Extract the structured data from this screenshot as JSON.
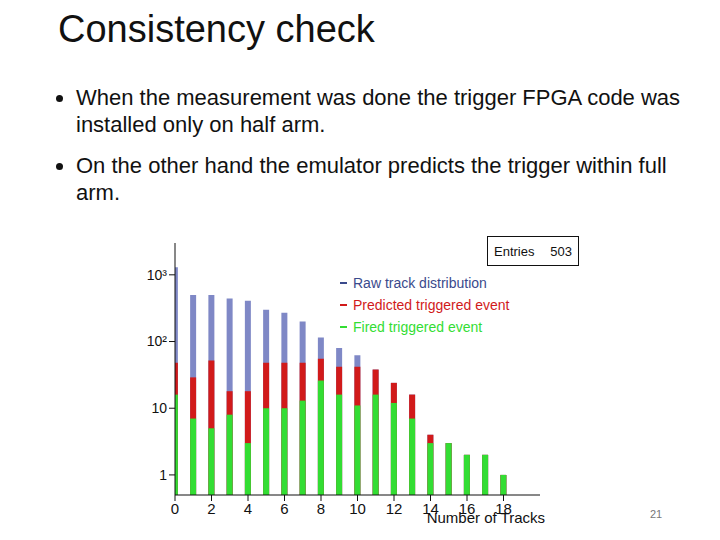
{
  "slide": {
    "title": "Consistency check",
    "bullets": [
      "When the measurement was done the trigger FPGA code was installed only on half arm.",
      "On the other hand the emulator predicts the trigger within full arm."
    ],
    "page_number": 21
  },
  "chart_data": {
    "type": "bar",
    "x": [
      0,
      1,
      2,
      3,
      4,
      5,
      6,
      7,
      8,
      9,
      10,
      11,
      12,
      13,
      14,
      15,
      16,
      17,
      18
    ],
    "series": [
      {
        "name": "Raw track distribution",
        "color": "#7f88c6",
        "values": [
          1300,
          500,
          500,
          440,
          410,
          300,
          270,
          200,
          115,
          80,
          62,
          38,
          24,
          16,
          4,
          3,
          2,
          2,
          1
        ]
      },
      {
        "name": "Predicted triggered event",
        "color": "#d11a1a",
        "values": [
          48,
          29,
          52,
          18,
          18,
          48,
          48,
          48,
          55,
          42,
          42,
          38,
          24,
          16,
          4,
          3,
          2,
          2,
          1
        ]
      },
      {
        "name": "Fired triggered event",
        "color": "#33dd33",
        "values": [
          16,
          7,
          5,
          8,
          3,
          10,
          10,
          13,
          26,
          16,
          11,
          16,
          12,
          7,
          3,
          3,
          2,
          2,
          1
        ]
      }
    ],
    "xlabel": "Number of Tracks",
    "xlim": [
      0,
      20
    ],
    "xticks": [
      0,
      2,
      4,
      6,
      8,
      10,
      12,
      14,
      16,
      18
    ],
    "ylim": [
      0.5,
      3000
    ],
    "yticks": [
      1,
      10,
      {
        "value": 100,
        "label": "10²"
      },
      {
        "value": 1000,
        "label": "10³"
      }
    ],
    "log": "y",
    "grid": false,
    "legend": "top right",
    "stats_box": {
      "label": "Entries",
      "value": 503
    }
  }
}
